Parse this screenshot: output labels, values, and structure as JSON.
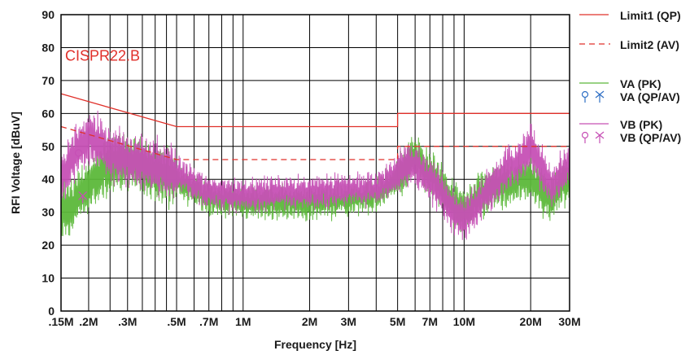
{
  "chart_data": {
    "type": "line",
    "xlabel": "Frequency [Hz]",
    "ylabel": "RFI Voltage [dBuV]",
    "x_scale": "log",
    "xlim": [
      0.15,
      30
    ],
    "ylim": [
      0,
      90
    ],
    "grid": true,
    "x_ticks": [
      {
        "value": 0.15,
        "label": ".15M"
      },
      {
        "value": 0.2,
        "label": ".2M"
      },
      {
        "value": 0.3,
        "label": ".3M"
      },
      {
        "value": 0.5,
        "label": ".5M"
      },
      {
        "value": 0.7,
        "label": ".7M"
      },
      {
        "value": 1,
        "label": "1M"
      },
      {
        "value": 2,
        "label": "2M"
      },
      {
        "value": 3,
        "label": "3M"
      },
      {
        "value": 5,
        "label": "5M"
      },
      {
        "value": 7,
        "label": "7M"
      },
      {
        "value": 10,
        "label": "10M"
      },
      {
        "value": 20,
        "label": "20M"
      },
      {
        "value": 30,
        "label": "30M"
      }
    ],
    "x_gridlines": [
      0.15,
      0.2,
      0.25,
      0.3,
      0.35,
      0.4,
      0.45,
      0.5,
      0.6,
      0.7,
      0.8,
      0.9,
      1,
      2,
      3,
      4,
      5,
      6,
      7,
      8,
      9,
      10,
      20,
      30
    ],
    "y_ticks": [
      0,
      10,
      20,
      30,
      40,
      50,
      60,
      70,
      80,
      90
    ],
    "annotation": "CISPR22.B",
    "legend_position": "right",
    "series": [
      {
        "name": "Limit1 (QP)",
        "color": "#e0302a",
        "style": "solid",
        "x": [
          0.15,
          0.5,
          0.5,
          5,
          5,
          30
        ],
        "y": [
          66,
          56,
          56,
          56,
          60,
          60
        ]
      },
      {
        "name": "Limit2 (AV)",
        "color": "#e0302a",
        "style": "dashed",
        "x": [
          0.15,
          0.5,
          0.5,
          5,
          5,
          30
        ],
        "y": [
          56,
          46,
          46,
          46,
          50,
          50
        ]
      },
      {
        "name": "VA (PK)",
        "color": "#5cb83a",
        "style": "noise",
        "x": [
          0.15,
          0.17,
          0.2,
          0.25,
          0.3,
          0.4,
          0.5,
          0.7,
          1,
          1.5,
          2,
          3,
          4,
          5,
          5.5,
          6,
          7,
          8,
          9,
          10,
          12,
          15,
          18,
          20,
          23,
          25,
          27,
          30
        ],
        "y": [
          30,
          32,
          38,
          44,
          46,
          42,
          40,
          34,
          33,
          33,
          33,
          34,
          35,
          40,
          44,
          47,
          42,
          37,
          32,
          30,
          36,
          38,
          40,
          40,
          36,
          33,
          38,
          40
        ]
      },
      {
        "name": "VB (PK)",
        "color": "#c650b5",
        "style": "noise",
        "x": [
          0.15,
          0.17,
          0.2,
          0.25,
          0.3,
          0.4,
          0.5,
          0.7,
          1,
          1.5,
          2,
          3,
          4,
          5,
          5.5,
          6,
          7,
          8,
          9,
          10,
          12,
          15,
          18,
          20,
          23,
          25,
          27,
          30
        ],
        "y": [
          40,
          47,
          53,
          48,
          46,
          44,
          42,
          36,
          35,
          36,
          36,
          37,
          37,
          42,
          44,
          44,
          40,
          35,
          30,
          28,
          34,
          42,
          46,
          50,
          42,
          37,
          41,
          44
        ]
      }
    ],
    "markers": [
      {
        "series": "VA (QP/AV)",
        "shape": "pin",
        "x": 0.18,
        "y": 48,
        "color": "#c650b5"
      },
      {
        "series": "VB (QP/AV)",
        "shape": "cross",
        "x": 0.188,
        "y": 35,
        "color": "#c650b5"
      }
    ],
    "legend": [
      {
        "label": "Limit1 (QP)",
        "color": "#e0302a",
        "glyph": "line"
      },
      {
        "label": "Limit2 (AV)",
        "color": "#e0302a",
        "glyph": "dash"
      },
      {
        "label": "VA (PK)",
        "color": "#5cb83a",
        "glyph": "line"
      },
      {
        "label": "VA (QP/AV)",
        "color": "#2f6fc4",
        "glyph": "markers"
      },
      {
        "label": "VB (PK)",
        "color": "#c650b5",
        "glyph": "line"
      },
      {
        "label": "VB (QP/AV)",
        "color": "#c650b5",
        "glyph": "markers"
      }
    ]
  }
}
